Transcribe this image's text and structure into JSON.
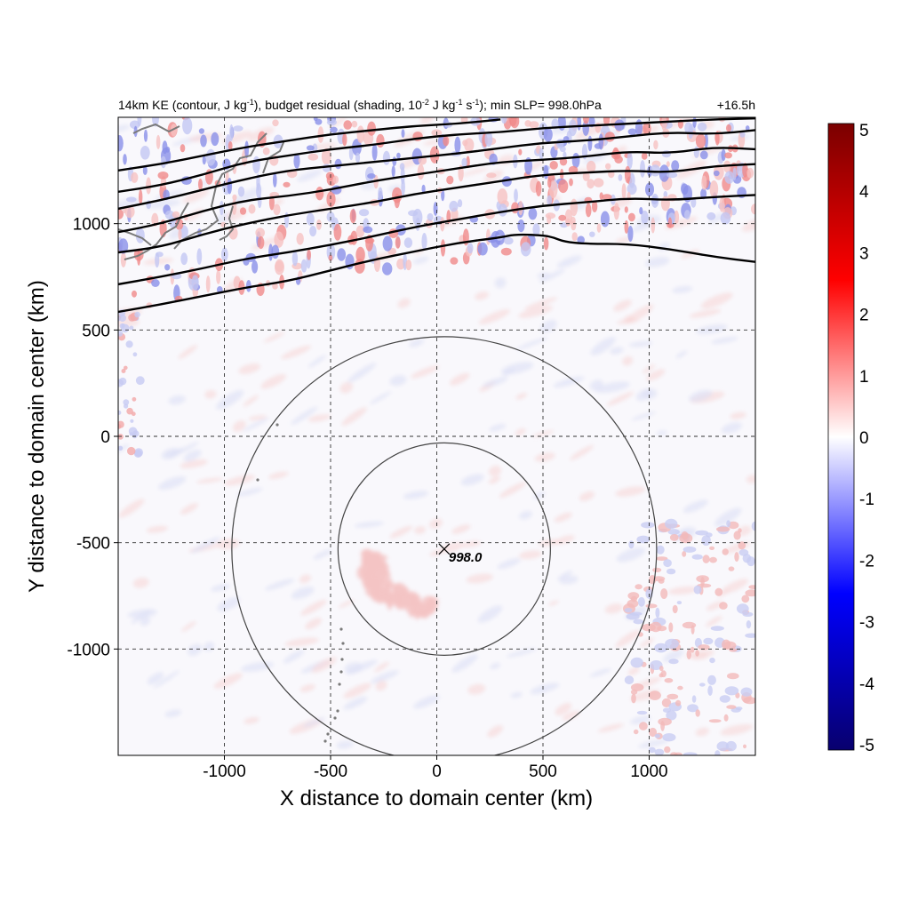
{
  "title": {
    "left_parts": [
      "14km KE (contour, J kg",
      "-1",
      "), budget residual (shading, 10",
      "-2",
      " J kg",
      "-1",
      " s",
      "-1",
      "); min SLP= 998.0hPa"
    ],
    "right": "+16.5h"
  },
  "chart_data": {
    "type": "heatmap",
    "title": "14km KE (contour, J kg-1), budget residual (shading, 10-2 J kg-1 s-1); min SLP= 998.0hPa",
    "time_label": "+16.5h",
    "xlabel": "X distance to domain center (km)",
    "ylabel": "Y distance to domain center (km)",
    "xlim": [
      -1500,
      1500
    ],
    "ylim": [
      -1500,
      1500
    ],
    "x_ticks": [
      -1000,
      -500,
      0,
      500,
      1000
    ],
    "y_ticks": [
      1000,
      500,
      0,
      -500,
      -1000
    ],
    "x_tick_labels": [
      "-1000",
      "-500",
      "0",
      "500",
      "1000"
    ],
    "y_tick_labels": [
      "1000",
      "500",
      "0",
      "-500",
      "-1000"
    ],
    "grid": true,
    "colorbar": {
      "range": [
        -5,
        5
      ],
      "ticks": [
        5,
        4,
        3,
        2,
        1,
        0,
        -1,
        -2,
        -3,
        -4,
        -5
      ],
      "tick_labels": [
        "5",
        "4",
        "3",
        "2",
        "1",
        "0",
        "-1",
        "-2",
        "-3",
        "-4",
        "-5"
      ],
      "colors": [
        "#08006e",
        "#0000ff",
        "#ffffff",
        "#ff0000",
        "#7a0000"
      ]
    },
    "center_marker": {
      "x": 35,
      "y": -530,
      "label": "998.0"
    },
    "range_circles": [
      {
        "cx": 35,
        "cy": -530,
        "r_km": 500
      },
      {
        "cx": 35,
        "cy": -530,
        "r_km": 1000
      }
    ],
    "ke_contours": [
      [
        [
          -1500,
          585
        ],
        [
          -1300,
          620
        ],
        [
          -1100,
          660
        ],
        [
          -900,
          700
        ],
        [
          -700,
          730
        ],
        [
          -500,
          780
        ],
        [
          -300,
          830
        ],
        [
          -100,
          870
        ],
        [
          100,
          910
        ],
        [
          300,
          935
        ],
        [
          370,
          950
        ],
        [
          500,
          945
        ],
        [
          550,
          935
        ],
        [
          600,
          915
        ],
        [
          700,
          905
        ],
        [
          900,
          905
        ],
        [
          1100,
          880
        ],
        [
          1300,
          845
        ],
        [
          1500,
          820
        ]
      ],
      [
        [
          -1500,
          715
        ],
        [
          -1300,
          750
        ],
        [
          -1100,
          790
        ],
        [
          -900,
          835
        ],
        [
          -700,
          865
        ],
        [
          -500,
          900
        ],
        [
          -300,
          940
        ],
        [
          -100,
          985
        ],
        [
          100,
          1020
        ],
        [
          300,
          1055
        ],
        [
          500,
          1085
        ],
        [
          700,
          1100
        ],
        [
          900,
          1120
        ],
        [
          1100,
          1110
        ],
        [
          1300,
          1125
        ],
        [
          1500,
          1135
        ]
      ],
      [
        [
          -1500,
          865
        ],
        [
          -1300,
          890
        ],
        [
          -1100,
          950
        ],
        [
          -900,
          1000
        ],
        [
          -700,
          1040
        ],
        [
          -500,
          1070
        ],
        [
          -300,
          1100
        ],
        [
          -100,
          1140
        ],
        [
          100,
          1170
        ],
        [
          300,
          1200
        ],
        [
          500,
          1230
        ],
        [
          700,
          1240
        ],
        [
          900,
          1250
        ],
        [
          1100,
          1240
        ],
        [
          1300,
          1270
        ],
        [
          1500,
          1280
        ]
      ],
      [
        [
          -1500,
          960
        ],
        [
          -1300,
          1000
        ],
        [
          -1100,
          1060
        ],
        [
          -900,
          1110
        ],
        [
          -700,
          1130
        ],
        [
          -500,
          1160
        ],
        [
          -300,
          1200
        ],
        [
          -100,
          1230
        ],
        [
          100,
          1260
        ],
        [
          300,
          1290
        ],
        [
          500,
          1300
        ],
        [
          700,
          1315
        ],
        [
          900,
          1340
        ],
        [
          1100,
          1330
        ],
        [
          1300,
          1360
        ],
        [
          1500,
          1350
        ]
      ],
      [
        [
          -1500,
          1070
        ],
        [
          -1300,
          1110
        ],
        [
          -1100,
          1160
        ],
        [
          -900,
          1210
        ],
        [
          -700,
          1250
        ],
        [
          -500,
          1270
        ],
        [
          -300,
          1290
        ],
        [
          -100,
          1310
        ],
        [
          100,
          1330
        ],
        [
          300,
          1355
        ],
        [
          500,
          1380
        ],
        [
          700,
          1390
        ],
        [
          900,
          1410
        ],
        [
          1100,
          1430
        ],
        [
          1300,
          1420
        ],
        [
          1500,
          1440
        ]
      ],
      [
        [
          -1500,
          1150
        ],
        [
          -1300,
          1180
        ],
        [
          -1100,
          1230
        ],
        [
          -900,
          1290
        ],
        [
          -700,
          1320
        ],
        [
          -500,
          1350
        ],
        [
          -300,
          1370
        ],
        [
          -100,
          1400
        ],
        [
          100,
          1420
        ],
        [
          300,
          1430
        ],
        [
          500,
          1450
        ],
        [
          700,
          1460
        ],
        [
          900,
          1470
        ],
        [
          1100,
          1480
        ],
        [
          1300,
          1490
        ],
        [
          1500,
          1495
        ]
      ],
      [
        [
          -1500,
          1250
        ],
        [
          -1300,
          1280
        ],
        [
          -1100,
          1320
        ],
        [
          -900,
          1360
        ],
        [
          -700,
          1390
        ],
        [
          -500,
          1420
        ],
        [
          -300,
          1440
        ],
        [
          -100,
          1460
        ],
        [
          100,
          1470
        ],
        [
          300,
          1490
        ]
      ]
    ]
  }
}
